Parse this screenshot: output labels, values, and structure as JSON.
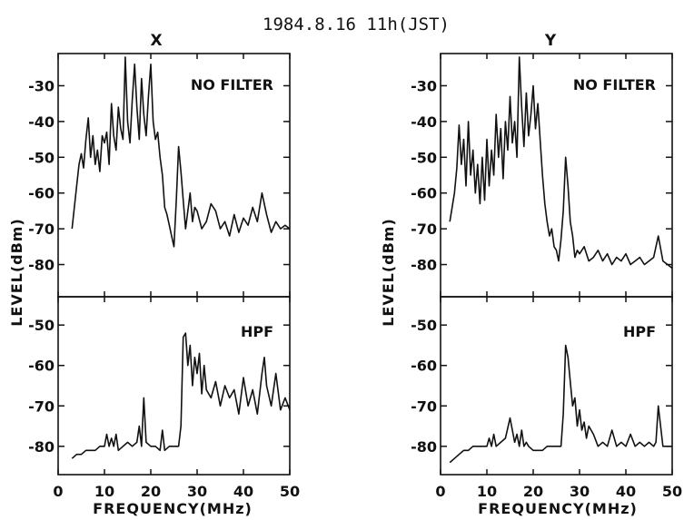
{
  "title": "1984.8.16  11h(JST)",
  "chart_data": [
    {
      "type": "line",
      "panel": "X",
      "subplot": "top",
      "annotation": "NO FILTER",
      "xlabel": "FREQUENCY(MHz)",
      "ylabel": "LEVEL(dBm)",
      "xlim": [
        0,
        50
      ],
      "ylim": [
        -89,
        -21
      ],
      "yticks": [
        -30,
        -40,
        -50,
        -60,
        -70,
        -80
      ],
      "x": [
        3,
        4,
        4.5,
        5,
        5.5,
        6,
        6.5,
        7,
        7.5,
        8,
        8.5,
        9,
        9.5,
        10,
        10.5,
        11,
        11.5,
        12,
        12.5,
        13,
        13.5,
        14,
        14.5,
        15,
        15.5,
        16,
        16.5,
        17,
        17.5,
        18,
        18.5,
        19,
        19.5,
        20,
        20.5,
        21,
        21.5,
        22,
        22.5,
        23,
        23.5,
        24,
        24.5,
        25,
        25.5,
        26,
        26.5,
        27,
        27.5,
        28,
        28.5,
        29,
        29.5,
        30,
        31,
        32,
        33,
        34,
        35,
        36,
        37,
        38,
        39,
        40,
        41,
        42,
        43,
        44,
        45,
        46,
        47,
        48,
        49,
        50
      ],
      "y": [
        -70,
        -58,
        -52,
        -49,
        -53,
        -45,
        -39,
        -50,
        -44,
        -52,
        -48,
        -54,
        -44,
        -46,
        -43,
        -52,
        -35,
        -44,
        -48,
        -36,
        -42,
        -45,
        -22,
        -40,
        -46,
        -34,
        -24,
        -36,
        -45,
        -28,
        -38,
        -44,
        -33,
        -24,
        -40,
        -45,
        -43,
        -50,
        -55,
        -64,
        -66,
        -69,
        -72,
        -75,
        -62,
        -47,
        -54,
        -62,
        -70,
        -65,
        -60,
        -68,
        -64,
        -65,
        -70,
        -68,
        -63,
        -65,
        -70,
        -68,
        -72,
        -66,
        -71,
        -67,
        -69,
        -64,
        -68,
        -60,
        -66,
        -71,
        -68,
        -70,
        -69,
        -70
      ]
    },
    {
      "type": "line",
      "panel": "X",
      "subplot": "bottom",
      "annotation": "HPF",
      "xlabel": "FREQUENCY(MHz)",
      "ylabel": "LEVEL(dBm)",
      "xlim": [
        0,
        50
      ],
      "ylim": [
        -87,
        -43
      ],
      "yticks": [
        -50,
        -60,
        -70,
        -80
      ],
      "xticks": [
        0,
        10,
        20,
        30,
        40,
        50
      ],
      "x": [
        3,
        4,
        5,
        6,
        7,
        8,
        9,
        10,
        10.5,
        11,
        11.5,
        12,
        12.5,
        13,
        14,
        15,
        16,
        17,
        17.5,
        18,
        18.5,
        19,
        20,
        21,
        22,
        22.5,
        23,
        24,
        25,
        26,
        26.5,
        27,
        27.5,
        28,
        28.5,
        29,
        29.5,
        30,
        30.5,
        31,
        31.5,
        32,
        33,
        34,
        35,
        36,
        37,
        38,
        39,
        40,
        41,
        42,
        43,
        44,
        44.5,
        45,
        46,
        47,
        48,
        49,
        50
      ],
      "y": [
        -83,
        -82,
        -82,
        -81,
        -81,
        -81,
        -80,
        -80,
        -77,
        -80,
        -78,
        -80,
        -77,
        -81,
        -80,
        -79,
        -80,
        -79,
        -75,
        -80,
        -68,
        -79,
        -80,
        -80,
        -81,
        -76,
        -81,
        -80,
        -80,
        -80,
        -75,
        -53,
        -52,
        -60,
        -55,
        -65,
        -58,
        -62,
        -57,
        -67,
        -60,
        -66,
        -68,
        -64,
        -70,
        -65,
        -68,
        -66,
        -72,
        -63,
        -70,
        -66,
        -72,
        -62,
        -58,
        -65,
        -70,
        -62,
        -71,
        -68,
        -71
      ]
    },
    {
      "type": "line",
      "panel": "Y",
      "subplot": "top",
      "annotation": "NO FILTER",
      "xlabel": "FREQUENCY(MHz)",
      "ylabel": "LEVEL(dBm)",
      "xlim": [
        0,
        50
      ],
      "ylim": [
        -89,
        -21
      ],
      "yticks": [
        -30,
        -40,
        -50,
        -60,
        -70,
        -80
      ],
      "x": [
        2,
        3,
        3.5,
        4,
        4.5,
        5,
        5.5,
        6,
        6.5,
        7,
        7.5,
        8,
        8.5,
        9,
        9.5,
        10,
        10.5,
        11,
        11.5,
        12,
        12.5,
        13,
        13.5,
        14,
        14.5,
        15,
        15.5,
        16,
        16.5,
        17,
        17.5,
        18,
        18.5,
        19,
        19.5,
        20,
        20.5,
        21,
        21.5,
        22,
        22.5,
        23,
        23.5,
        24,
        24.5,
        25,
        25.5,
        26,
        26.5,
        27,
        27.5,
        28,
        28.5,
        29,
        29.5,
        30,
        31,
        32,
        33,
        34,
        35,
        36,
        37,
        38,
        39,
        40,
        41,
        42,
        43,
        44,
        45,
        46,
        47,
        48,
        49,
        50
      ],
      "y": [
        -68,
        -60,
        -53,
        -41,
        -52,
        -45,
        -58,
        -40,
        -55,
        -48,
        -60,
        -52,
        -63,
        -50,
        -62,
        -45,
        -58,
        -48,
        -55,
        -38,
        -50,
        -42,
        -56,
        -40,
        -48,
        -33,
        -46,
        -40,
        -50,
        -22,
        -36,
        -47,
        -32,
        -44,
        -38,
        -30,
        -42,
        -35,
        -45,
        -55,
        -63,
        -68,
        -72,
        -70,
        -75,
        -76,
        -79,
        -73,
        -65,
        -50,
        -58,
        -68,
        -72,
        -78,
        -76,
        -77,
        -75,
        -79,
        -78,
        -76,
        -79,
        -77,
        -80,
        -78,
        -79,
        -77,
        -80,
        -79,
        -78,
        -80,
        -79,
        -78,
        -72,
        -79,
        -80,
        -81
      ]
    },
    {
      "type": "line",
      "panel": "Y",
      "subplot": "bottom",
      "annotation": "HPF",
      "xlabel": "FREQUENCY(MHz)",
      "ylabel": "LEVEL(dBm)",
      "xlim": [
        0,
        50
      ],
      "ylim": [
        -87,
        -43
      ],
      "yticks": [
        -50,
        -60,
        -70,
        -80
      ],
      "xticks": [
        0,
        10,
        20,
        30,
        40,
        50
      ],
      "x": [
        2,
        3,
        4,
        5,
        6,
        7,
        8,
        9,
        10,
        10.5,
        11,
        11.5,
        12,
        13,
        14,
        15,
        16,
        16.5,
        17,
        17.5,
        18,
        18.5,
        19,
        20,
        21,
        22,
        23,
        24,
        25,
        26,
        26.5,
        27,
        27.5,
        28,
        28.5,
        29,
        29.5,
        30,
        30.5,
        31,
        31.5,
        32,
        33,
        34,
        35,
        36,
        37,
        38,
        39,
        40,
        41,
        42,
        43,
        44,
        45,
        46,
        46.5,
        47,
        48,
        49,
        50
      ],
      "y": [
        -84,
        -83,
        -82,
        -81,
        -81,
        -80,
        -80,
        -80,
        -80,
        -78,
        -80,
        -77,
        -80,
        -79,
        -78,
        -73,
        -79,
        -77,
        -80,
        -76,
        -80,
        -79,
        -80,
        -81,
        -81,
        -81,
        -80,
        -80,
        -80,
        -80,
        -72,
        -55,
        -58,
        -64,
        -70,
        -68,
        -75,
        -71,
        -76,
        -74,
        -78,
        -75,
        -77,
        -80,
        -79,
        -80,
        -76,
        -80,
        -79,
        -80,
        -77,
        -80,
        -79,
        -80,
        -79,
        -80,
        -79,
        -70,
        -80,
        -80,
        -80
      ]
    }
  ]
}
